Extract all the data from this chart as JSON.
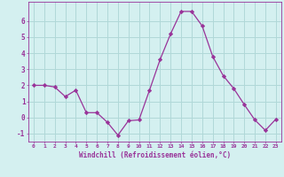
{
  "x": [
    0,
    1,
    2,
    3,
    4,
    5,
    6,
    7,
    8,
    9,
    10,
    11,
    12,
    13,
    14,
    15,
    16,
    17,
    18,
    19,
    20,
    21,
    22,
    23
  ],
  "y": [
    2.0,
    2.0,
    1.9,
    1.3,
    1.7,
    0.3,
    0.3,
    -0.3,
    -1.1,
    -0.2,
    -0.15,
    1.7,
    3.6,
    5.2,
    6.6,
    6.6,
    5.7,
    3.8,
    2.6,
    1.8,
    0.8,
    -0.15,
    -0.8,
    -0.1
  ],
  "line_color": "#993399",
  "marker": "D",
  "marker_size": 2.2,
  "bg_color": "#d4f0f0",
  "grid_color": "#b0d8d8",
  "axis_color": "#993399",
  "xlabel": "Windchill (Refroidissement éolien,°C)",
  "ylim": [
    -1.5,
    7.2
  ],
  "xlim": [
    -0.5,
    23.5
  ],
  "yticks": [
    -1,
    0,
    1,
    2,
    3,
    4,
    5,
    6
  ],
  "xticks": [
    0,
    1,
    2,
    3,
    4,
    5,
    6,
    7,
    8,
    9,
    10,
    11,
    12,
    13,
    14,
    15,
    16,
    17,
    18,
    19,
    20,
    21,
    22,
    23
  ]
}
